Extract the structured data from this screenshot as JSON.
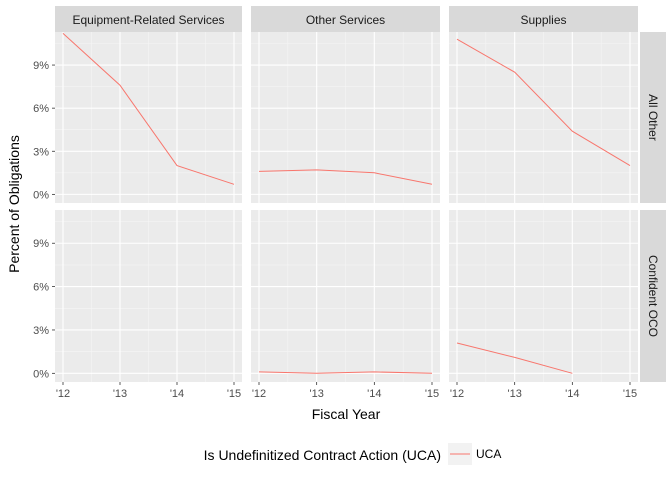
{
  "chart_data": {
    "type": "line",
    "facet_columns": [
      "Equipment-Related Services",
      "Other Services",
      "Supplies"
    ],
    "facet_rows": [
      "All Other",
      "Confident OCO"
    ],
    "x": [
      "'12",
      "'13",
      "'14",
      "'15"
    ],
    "xlabel": "Fiscal Year",
    "ylabel": "Percent of Obligations",
    "y_ticks": [
      "0%",
      "3%",
      "6%",
      "9%"
    ],
    "ylim": [
      -0.6,
      11.3
    ],
    "grid": true,
    "legend": {
      "title": "Is Undefinitized Contract Action (UCA)",
      "position": "bottom",
      "entries": [
        {
          "name": "UCA",
          "color": "#f8766d"
        }
      ]
    },
    "panels": [
      {
        "row": "All Other",
        "column": "Equipment-Related Services",
        "series": [
          {
            "name": "UCA",
            "values": [
              11.2,
              7.6,
              2.0,
              0.7
            ]
          }
        ]
      },
      {
        "row": "All Other",
        "column": "Other Services",
        "series": [
          {
            "name": "UCA",
            "values": [
              1.6,
              1.7,
              1.5,
              0.7
            ]
          }
        ]
      },
      {
        "row": "All Other",
        "column": "Supplies",
        "series": [
          {
            "name": "UCA",
            "values": [
              10.8,
              8.5,
              4.4,
              2.0
            ]
          }
        ]
      },
      {
        "row": "Confident OCO",
        "column": "Equipment-Related Services",
        "series": [
          {
            "name": "UCA",
            "values": [
              null,
              null,
              null,
              null
            ]
          }
        ]
      },
      {
        "row": "Confident OCO",
        "column": "Other Services",
        "series": [
          {
            "name": "UCA",
            "values": [
              0.1,
              0.0,
              0.1,
              0.0
            ]
          }
        ]
      },
      {
        "row": "Confident OCO",
        "column": "Supplies",
        "series": [
          {
            "name": "UCA",
            "values": [
              2.1,
              1.1,
              0.0,
              null
            ]
          }
        ]
      }
    ]
  }
}
